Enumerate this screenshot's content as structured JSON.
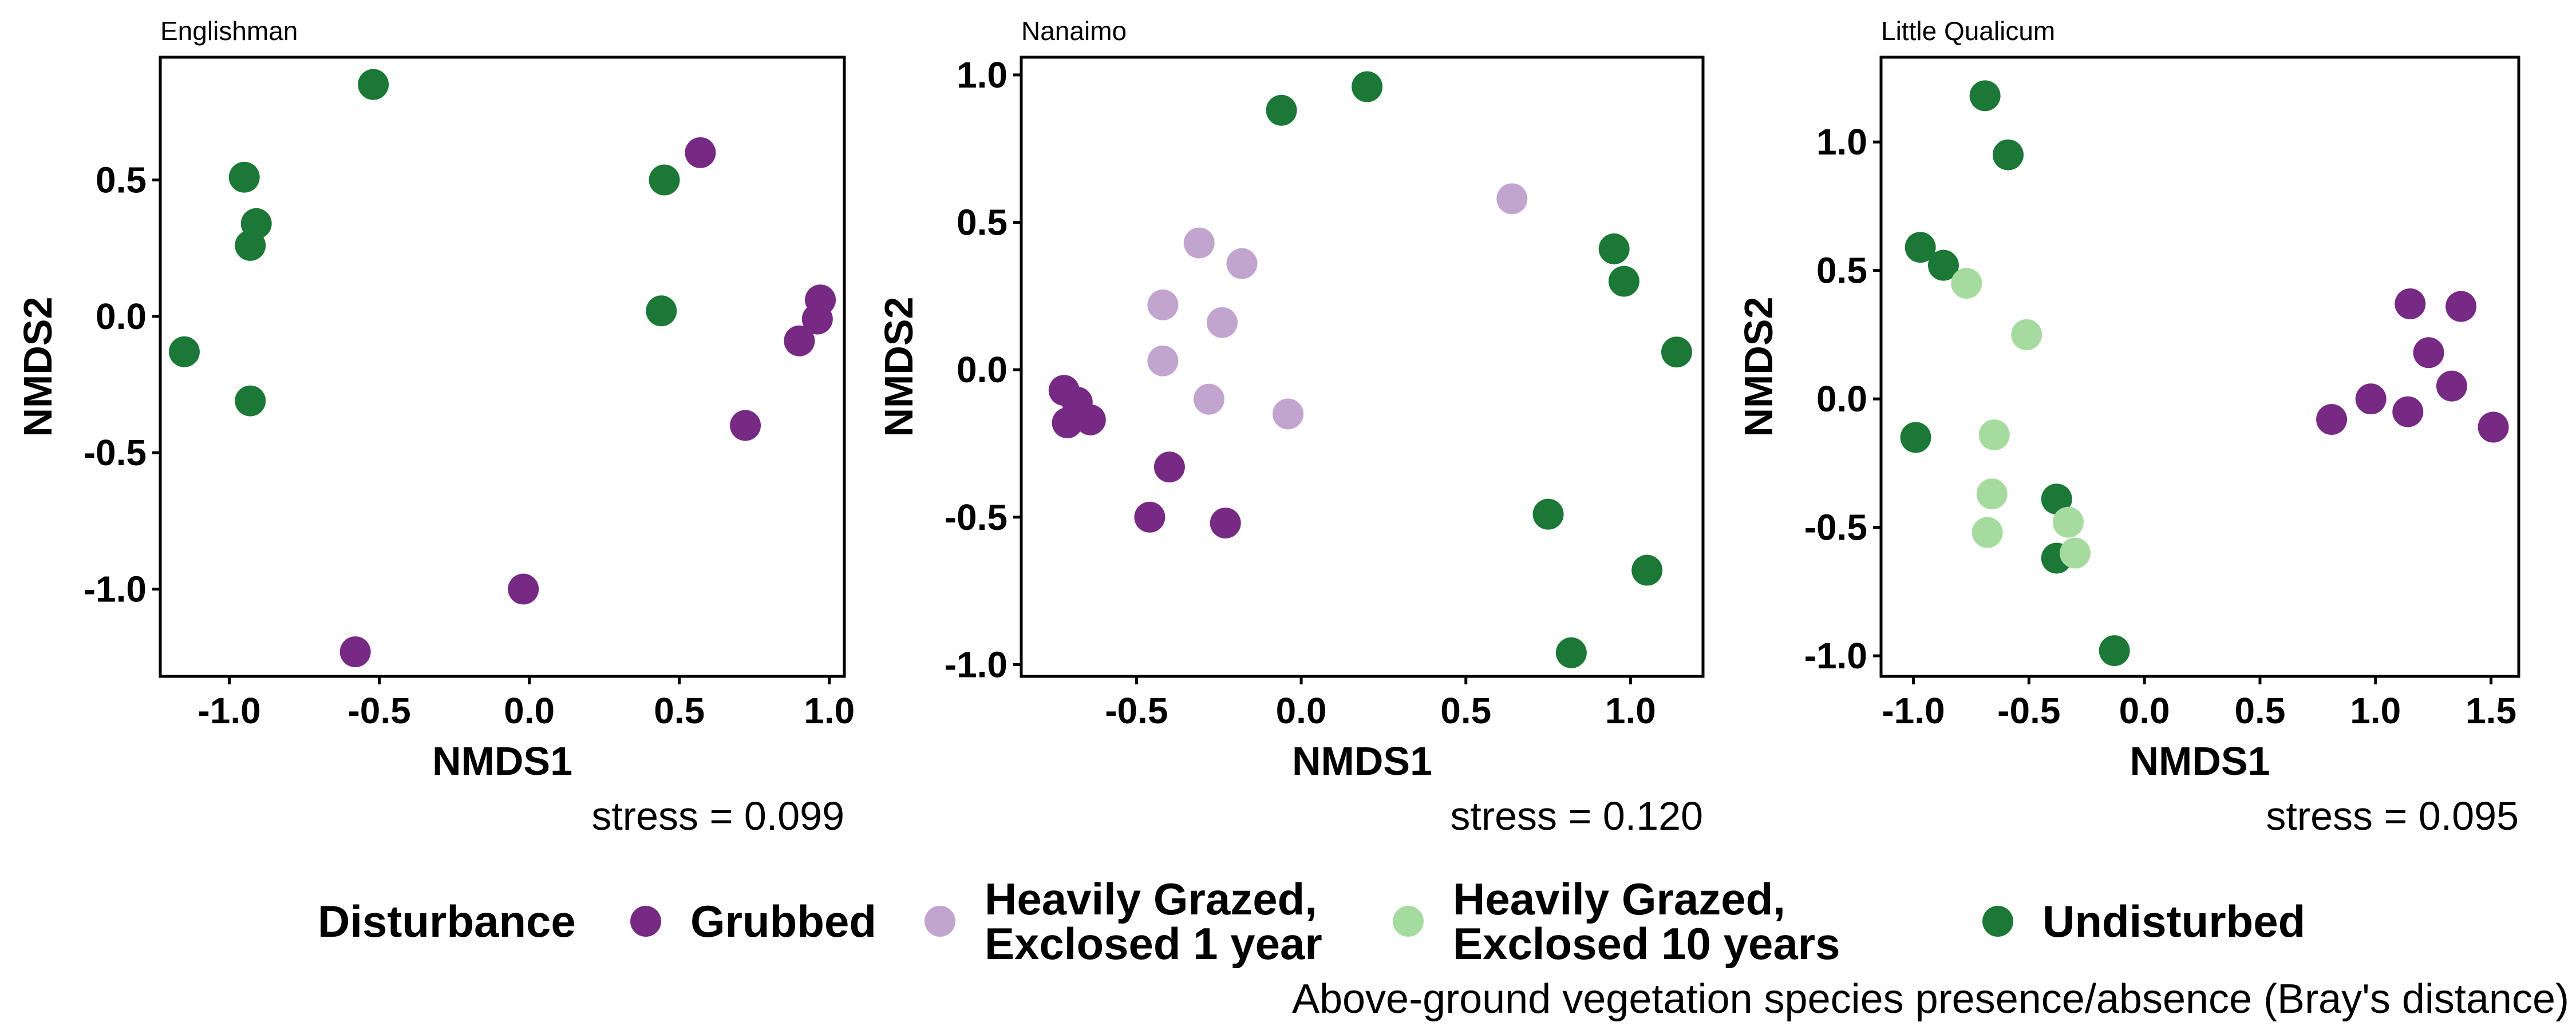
{
  "chart_data": [
    {
      "type": "scatter",
      "title": "Englishman",
      "xlabel": "NMDS1",
      "ylabel": "NMDS2",
      "xlim": [
        -1.23,
        1.05
      ],
      "ylim": [
        -1.32,
        0.95
      ],
      "xticks": [
        -1.0,
        -0.5,
        0.0,
        0.5,
        1.0
      ],
      "xtick_labels": [
        "-1.0",
        "-0.5",
        "0.0",
        "0.5",
        "1.0"
      ],
      "yticks": [
        -1.0,
        -0.5,
        0.0,
        0.5
      ],
      "ytick_labels": [
        "-1.0",
        "-0.5",
        "0.0",
        "0.5"
      ],
      "stress": "stress = 0.099",
      "points": [
        {
          "x": -0.52,
          "y": 0.85,
          "group": "Undisturbed"
        },
        {
          "x": -0.95,
          "y": 0.51,
          "group": "Undisturbed"
        },
        {
          "x": -0.91,
          "y": 0.34,
          "group": "Undisturbed"
        },
        {
          "x": -0.93,
          "y": 0.26,
          "group": "Undisturbed"
        },
        {
          "x": -1.15,
          "y": -0.13,
          "group": "Undisturbed"
        },
        {
          "x": -0.93,
          "y": -0.31,
          "group": "Undisturbed"
        },
        {
          "x": 0.45,
          "y": 0.5,
          "group": "Undisturbed"
        },
        {
          "x": 0.44,
          "y": 0.02,
          "group": "Undisturbed"
        },
        {
          "x": 0.57,
          "y": 0.6,
          "group": "Grubbed"
        },
        {
          "x": 0.97,
          "y": 0.06,
          "group": "Grubbed"
        },
        {
          "x": 0.96,
          "y": -0.01,
          "group": "Grubbed"
        },
        {
          "x": 0.9,
          "y": -0.09,
          "group": "Grubbed"
        },
        {
          "x": 0.72,
          "y": -0.4,
          "group": "Grubbed"
        },
        {
          "x": -0.02,
          "y": -1.0,
          "group": "Grubbed"
        },
        {
          "x": -0.58,
          "y": -1.23,
          "group": "Grubbed"
        }
      ]
    },
    {
      "type": "scatter",
      "title": "Nanaimo",
      "xlabel": "NMDS1",
      "ylabel": "NMDS2",
      "xlim": [
        -0.85,
        1.22
      ],
      "ylim": [
        -1.04,
        1.06
      ],
      "xticks": [
        -0.5,
        0.0,
        0.5,
        1.0
      ],
      "xtick_labels": [
        "-0.5",
        "0.0",
        "0.5",
        "1.0"
      ],
      "yticks": [
        -1.0,
        -0.5,
        0.0,
        0.5,
        1.0
      ],
      "ytick_labels": [
        "-1.0",
        "-0.5",
        "0.0",
        "0.5",
        "1.0"
      ],
      "stress": "stress = 0.120",
      "points": [
        {
          "x": 0.2,
          "y": 0.96,
          "group": "Undisturbed"
        },
        {
          "x": -0.06,
          "y": 0.88,
          "group": "Undisturbed"
        },
        {
          "x": 0.95,
          "y": 0.41,
          "group": "Undisturbed"
        },
        {
          "x": 0.98,
          "y": 0.3,
          "group": "Undisturbed"
        },
        {
          "x": 1.14,
          "y": 0.06,
          "group": "Undisturbed"
        },
        {
          "x": 0.75,
          "y": -0.49,
          "group": "Undisturbed"
        },
        {
          "x": 1.05,
          "y": -0.68,
          "group": "Undisturbed"
        },
        {
          "x": 0.82,
          "y": -0.96,
          "group": "Undisturbed"
        },
        {
          "x": 0.64,
          "y": 0.58,
          "group": "Heavily Grazed, Exclosed 1 year"
        },
        {
          "x": -0.31,
          "y": 0.43,
          "group": "Heavily Grazed, Exclosed 1 year"
        },
        {
          "x": -0.18,
          "y": 0.36,
          "group": "Heavily Grazed, Exclosed 1 year"
        },
        {
          "x": -0.42,
          "y": 0.22,
          "group": "Heavily Grazed, Exclosed 1 year"
        },
        {
          "x": -0.24,
          "y": 0.16,
          "group": "Heavily Grazed, Exclosed 1 year"
        },
        {
          "x": -0.42,
          "y": 0.03,
          "group": "Heavily Grazed, Exclosed 1 year"
        },
        {
          "x": -0.28,
          "y": -0.1,
          "group": "Heavily Grazed, Exclosed 1 year"
        },
        {
          "x": -0.04,
          "y": -0.15,
          "group": "Heavily Grazed, Exclosed 1 year"
        },
        {
          "x": -0.72,
          "y": -0.07,
          "group": "Grubbed"
        },
        {
          "x": -0.68,
          "y": -0.11,
          "group": "Grubbed"
        },
        {
          "x": -0.71,
          "y": -0.18,
          "group": "Grubbed"
        },
        {
          "x": -0.64,
          "y": -0.17,
          "group": "Grubbed"
        },
        {
          "x": -0.4,
          "y": -0.33,
          "group": "Grubbed"
        },
        {
          "x": -0.46,
          "y": -0.5,
          "group": "Grubbed"
        },
        {
          "x": -0.23,
          "y": -0.52,
          "group": "Grubbed"
        }
      ]
    },
    {
      "type": "scatter",
      "title": "Little Qualicum",
      "xlabel": "NMDS1",
      "ylabel": "NMDS2",
      "xlim": [
        -1.14,
        1.62
      ],
      "ylim": [
        -1.08,
        1.33
      ],
      "xticks": [
        -1.0,
        -0.5,
        0.0,
        0.5,
        1.0,
        1.5
      ],
      "xtick_labels": [
        "-1.0",
        "-0.5",
        "0.0",
        "0.5",
        "1.0",
        "1.5"
      ],
      "yticks": [
        -1.0,
        -0.5,
        0.0,
        0.5,
        1.0
      ],
      "ytick_labels": [
        "-1.0",
        "-0.5",
        "0.0",
        "0.5",
        "1.0"
      ],
      "stress": "stress = 0.095",
      "points": [
        {
          "x": -0.69,
          "y": 1.18,
          "group": "Undisturbed"
        },
        {
          "x": -0.59,
          "y": 0.95,
          "group": "Undisturbed"
        },
        {
          "x": -0.97,
          "y": 0.59,
          "group": "Undisturbed"
        },
        {
          "x": -0.87,
          "y": 0.52,
          "group": "Undisturbed"
        },
        {
          "x": -0.99,
          "y": -0.15,
          "group": "Undisturbed"
        },
        {
          "x": -0.38,
          "y": -0.39,
          "group": "Undisturbed"
        },
        {
          "x": -0.38,
          "y": -0.62,
          "group": "Undisturbed"
        },
        {
          "x": -0.13,
          "y": -0.98,
          "group": "Undisturbed"
        },
        {
          "x": -0.77,
          "y": 0.45,
          "group": "Heavily Grazed, Exclosed 10 years"
        },
        {
          "x": -0.51,
          "y": 0.25,
          "group": "Heavily Grazed, Exclosed 10 years"
        },
        {
          "x": -0.65,
          "y": -0.14,
          "group": "Heavily Grazed, Exclosed 10 years"
        },
        {
          "x": -0.66,
          "y": -0.37,
          "group": "Heavily Grazed, Exclosed 10 years"
        },
        {
          "x": -0.33,
          "y": -0.48,
          "group": "Heavily Grazed, Exclosed 10 years"
        },
        {
          "x": -0.68,
          "y": -0.52,
          "group": "Heavily Grazed, Exclosed 10 years"
        },
        {
          "x": -0.3,
          "y": -0.6,
          "group": "Heavily Grazed, Exclosed 10 years"
        },
        {
          "x": 1.15,
          "y": 0.37,
          "group": "Grubbed"
        },
        {
          "x": 1.37,
          "y": 0.36,
          "group": "Grubbed"
        },
        {
          "x": 1.23,
          "y": 0.18,
          "group": "Grubbed"
        },
        {
          "x": 1.33,
          "y": 0.05,
          "group": "Grubbed"
        },
        {
          "x": 0.98,
          "y": 0.0,
          "group": "Grubbed"
        },
        {
          "x": 1.14,
          "y": -0.05,
          "group": "Grubbed"
        },
        {
          "x": 0.81,
          "y": -0.08,
          "group": "Grubbed"
        },
        {
          "x": 1.51,
          "y": -0.11,
          "group": "Grubbed"
        }
      ]
    }
  ],
  "legend": {
    "title": "Disturbance",
    "placement": "bottom",
    "items": [
      {
        "group": "Grubbed",
        "lines": [
          "Grubbed"
        ],
        "color": "#762a83"
      },
      {
        "group": "Heavily Grazed, Exclosed 1 year",
        "lines": [
          "Heavily Grazed,",
          "Exclosed 1 year"
        ],
        "color": "#c2a5cf"
      },
      {
        "group": "Heavily Grazed, Exclosed 10 years",
        "lines": [
          "Heavily Grazed,",
          "Exclosed 10 years"
        ],
        "color": "#a6dba0"
      },
      {
        "group": "Undisturbed",
        "lines": [
          "Undisturbed"
        ],
        "color": "#1b7837"
      }
    ]
  },
  "caption": "Above-ground vegetation species presence/absence (Bray's distance)"
}
